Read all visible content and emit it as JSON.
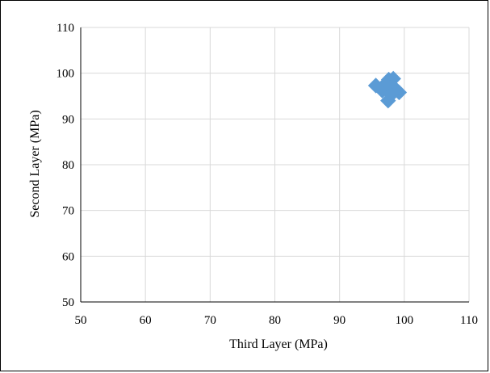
{
  "chart_data": {
    "type": "scatter",
    "title": "",
    "xlabel": "Third Layer  (MPa)",
    "ylabel": "Second Layer  (MPa)",
    "xlim": [
      50,
      110
    ],
    "ylim": [
      50,
      110
    ],
    "x_ticks": [
      50,
      60,
      70,
      80,
      90,
      100,
      110
    ],
    "y_ticks": [
      50,
      60,
      70,
      80,
      90,
      100,
      110
    ],
    "grid": true,
    "legend": "none",
    "marker": "diamond",
    "color": "#5b9bd5",
    "series": [
      {
        "points": [
          {
            "x": 95.6,
            "y": 97.3
          },
          {
            "x": 96.6,
            "y": 96.2
          },
          {
            "x": 97.2,
            "y": 97.8
          },
          {
            "x": 97.6,
            "y": 98.6
          },
          {
            "x": 98.3,
            "y": 98.8
          },
          {
            "x": 97.9,
            "y": 97.0
          },
          {
            "x": 98.6,
            "y": 96.6
          },
          {
            "x": 99.2,
            "y": 95.8
          },
          {
            "x": 97.5,
            "y": 94.0
          },
          {
            "x": 98.0,
            "y": 95.3
          }
        ]
      }
    ]
  }
}
